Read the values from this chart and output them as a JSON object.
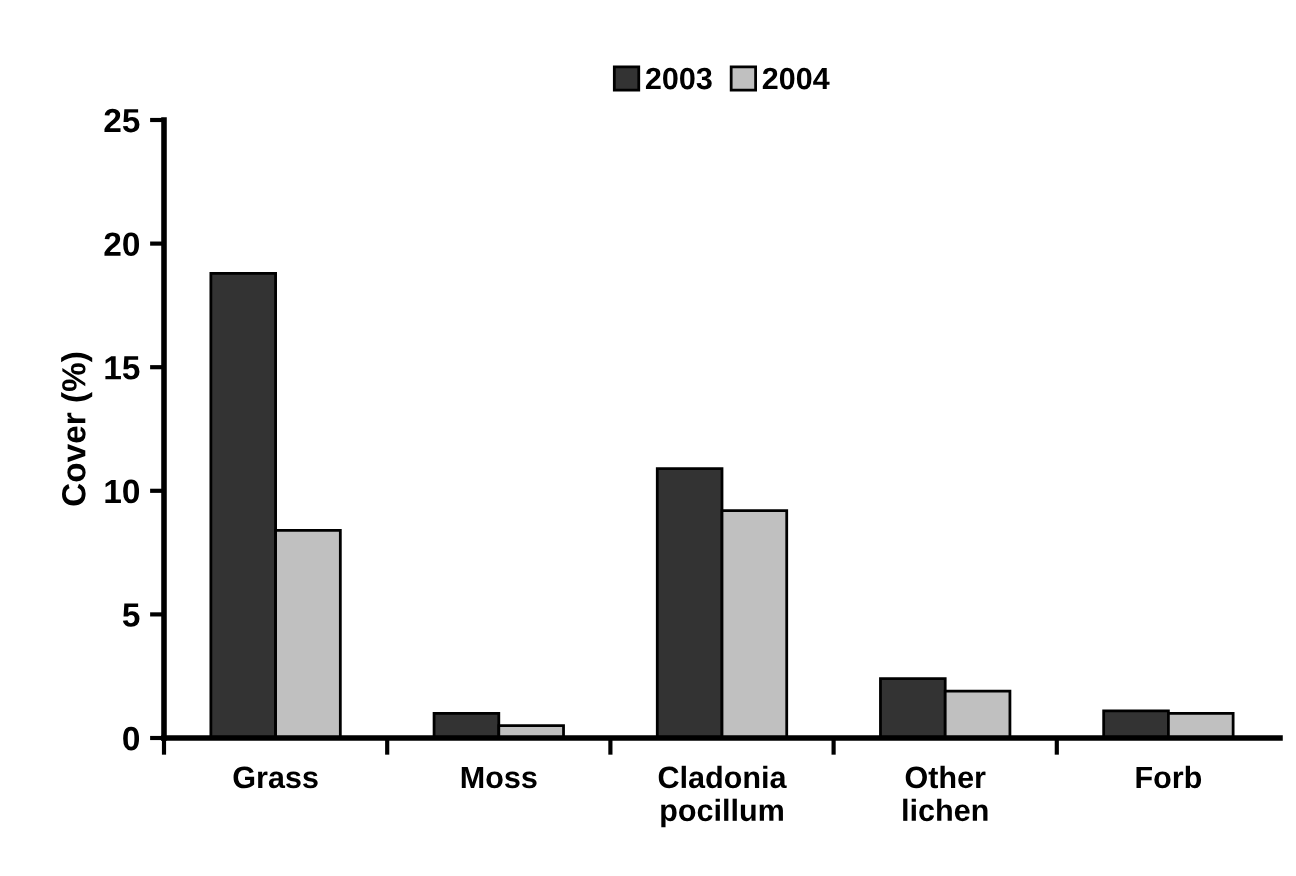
{
  "chart_data": {
    "type": "bar",
    "ylabel": "Cover (%)",
    "categories": [
      "Grass",
      "Moss",
      "Cladonia\npocillum",
      "Other\nlichen",
      "Forb"
    ],
    "series": [
      {
        "name": "2003",
        "color": "#333333",
        "values": [
          18.8,
          1.0,
          10.9,
          2.4,
          1.1
        ]
      },
      {
        "name": "2004",
        "color": "#c0c0c0",
        "values": [
          8.4,
          0.5,
          9.2,
          1.9,
          1.0
        ]
      }
    ],
    "ylim": [
      0,
      25
    ],
    "yticks": [
      0,
      5,
      10,
      15,
      20,
      25
    ],
    "grid": false,
    "legend": "top"
  }
}
